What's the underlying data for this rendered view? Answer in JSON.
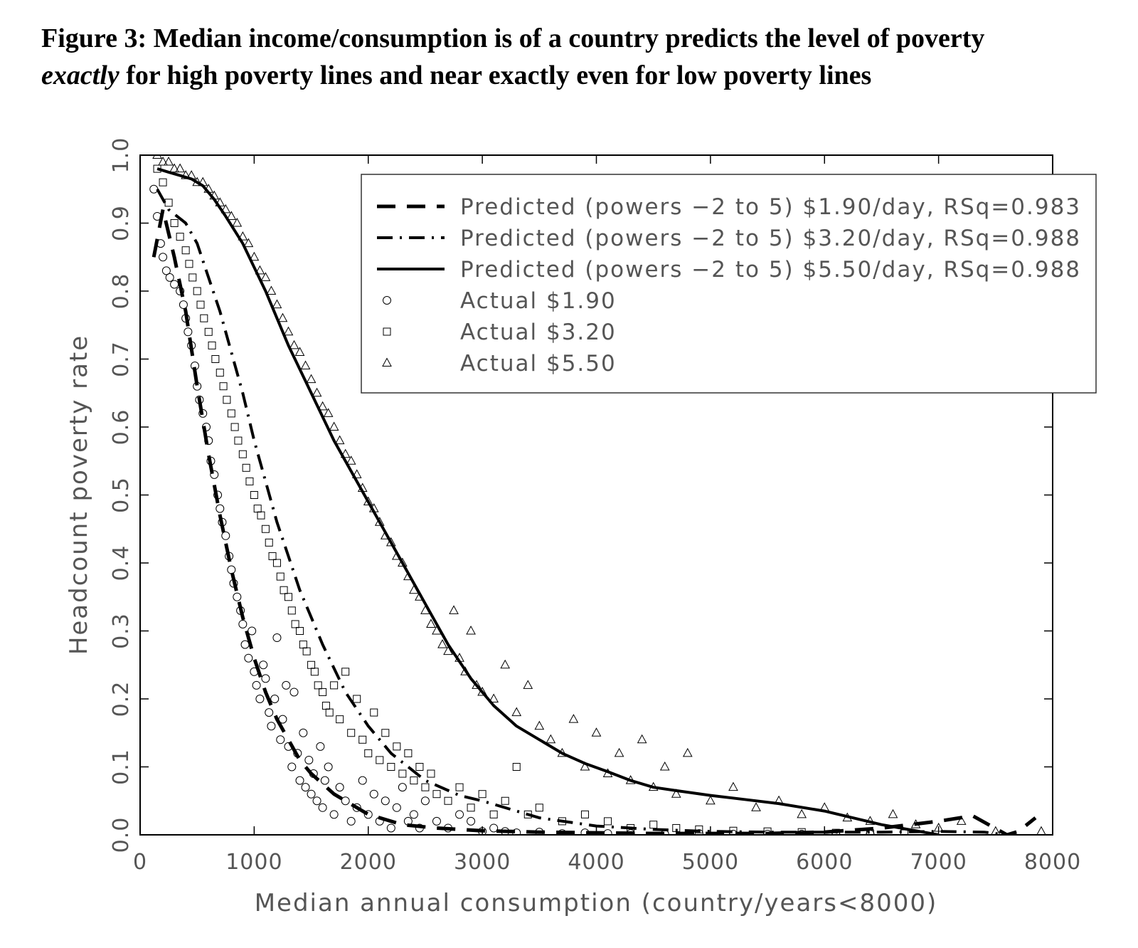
{
  "caption": {
    "line1": "Figure 3:  Median income/consumption is of a country predicts the level of poverty",
    "line2_em": "exactly",
    "line2_rest": " for high poverty lines and near exactly even for low poverty lines"
  },
  "chart_data": {
    "type": "scatter",
    "title": "Figure 3:  Median income/consumption is of a country predicts the level of poverty exactly for high poverty lines and near exactly even for low poverty lines",
    "xlabel": "Median annual consumption (country/years<8000)",
    "ylabel": "Headcount poverty rate",
    "xlim": [
      0,
      8000
    ],
    "ylim": [
      0,
      1
    ],
    "x_ticks": [
      "0",
      "1000",
      "2000",
      "3000",
      "4000",
      "5000",
      "6000",
      "7000",
      "8000"
    ],
    "y_ticks": [
      "0.0",
      "0.1",
      "0.2",
      "0.3",
      "0.4",
      "0.5",
      "0.6",
      "0.7",
      "0.8",
      "0.9",
      "1.0"
    ],
    "legend_position": "top-right",
    "legend": [
      {
        "label": "Predicted (powers −2 to 5) $1.90/day, RSq=0.983",
        "style": "dashed"
      },
      {
        "label": "Predicted (powers −2 to 5) $3.20/day, RSq=0.988",
        "style": "dash-dot"
      },
      {
        "label": "Predicted (powers −2 to 5) $5.50/day, RSq=0.988",
        "style": "solid"
      },
      {
        "label": "Actual $1.90",
        "marker": "circle"
      },
      {
        "label": "Actual $3.20",
        "marker": "square"
      },
      {
        "label": "Actual $5.50",
        "marker": "triangle"
      }
    ],
    "series": [
      {
        "name": "Predicted $1.90/day",
        "style": "dashed",
        "x": [
          120,
          200,
          300,
          400,
          500,
          600,
          700,
          800,
          900,
          1000,
          1100,
          1200,
          1300,
          1400,
          1500,
          1700,
          2000,
          2300,
          2600,
          3000,
          3500,
          4000,
          4500,
          5000,
          5500,
          6000,
          6500,
          7000,
          7300,
          7600,
          7700,
          7850
        ],
        "y": [
          0.85,
          0.92,
          0.85,
          0.77,
          0.66,
          0.56,
          0.47,
          0.39,
          0.32,
          0.26,
          0.21,
          0.17,
          0.14,
          0.11,
          0.09,
          0.06,
          0.03,
          0.015,
          0.01,
          0.006,
          0.004,
          0.003,
          0.002,
          0.002,
          0.002,
          0.004,
          0.01,
          0.02,
          0.028,
          0.0,
          0.005,
          0.025
        ]
      },
      {
        "name": "Predicted $3.20/day",
        "style": "dash-dot",
        "x": [
          150,
          250,
          400,
          500,
          600,
          700,
          800,
          900,
          1000,
          1100,
          1200,
          1300,
          1400,
          1500,
          1600,
          1800,
          2000,
          2200,
          2500,
          2800,
          3000,
          3500,
          4000,
          4500,
          5000,
          5500,
          6000,
          6500,
          7000,
          7400,
          7600
        ],
        "y": [
          0.95,
          0.92,
          0.9,
          0.87,
          0.82,
          0.77,
          0.71,
          0.65,
          0.58,
          0.52,
          0.46,
          0.41,
          0.36,
          0.32,
          0.28,
          0.21,
          0.16,
          0.12,
          0.08,
          0.058,
          0.05,
          0.025,
          0.013,
          0.008,
          0.005,
          0.004,
          0.004,
          0.004,
          0.005,
          0.004,
          0.0
        ]
      },
      {
        "name": "Predicted $5.50/day",
        "style": "solid",
        "x": [
          150,
          250,
          350,
          450,
          550,
          650,
          750,
          900,
          1100,
          1300,
          1500,
          1700,
          1900,
          2100,
          2300,
          2500,
          2700,
          2900,
          3100,
          3300,
          3500,
          3700,
          3900,
          4100,
          4300,
          4500,
          4700,
          5000,
          5300,
          5600,
          6000,
          6500,
          7000
        ],
        "y": [
          0.98,
          0.975,
          0.97,
          0.965,
          0.955,
          0.935,
          0.91,
          0.87,
          0.8,
          0.72,
          0.65,
          0.58,
          0.52,
          0.46,
          0.4,
          0.34,
          0.28,
          0.23,
          0.19,
          0.16,
          0.14,
          0.12,
          0.105,
          0.093,
          0.08,
          0.07,
          0.065,
          0.058,
          0.052,
          0.046,
          0.035,
          0.015,
          0.0
        ]
      },
      {
        "name": "Actual $1.90",
        "marker": "circle",
        "x": [
          120,
          150,
          180,
          200,
          230,
          260,
          300,
          350,
          380,
          400,
          420,
          450,
          480,
          500,
          520,
          550,
          580,
          600,
          620,
          650,
          680,
          700,
          720,
          750,
          780,
          800,
          820,
          850,
          880,
          900,
          920,
          950,
          980,
          1000,
          1020,
          1050,
          1080,
          1100,
          1130,
          1150,
          1180,
          1200,
          1230,
          1250,
          1280,
          1300,
          1330,
          1350,
          1380,
          1400,
          1430,
          1450,
          1480,
          1500,
          1520,
          1550,
          1580,
          1600,
          1620,
          1650,
          1700,
          1750,
          1800,
          1850,
          1900,
          1950,
          2000,
          2050,
          2100,
          2150,
          2200,
          2250,
          2300,
          2350,
          2400,
          2450,
          2500,
          2600,
          2700,
          2800,
          2900,
          3000,
          3100,
          3200,
          3300,
          3500,
          3700,
          3900,
          4100,
          4300,
          4600,
          4900,
          5200,
          5500,
          5800,
          6100,
          6400
        ],
        "y": [
          0.95,
          0.91,
          0.87,
          0.85,
          0.83,
          0.82,
          0.81,
          0.8,
          0.78,
          0.76,
          0.74,
          0.72,
          0.69,
          0.66,
          0.64,
          0.62,
          0.6,
          0.58,
          0.55,
          0.53,
          0.5,
          0.48,
          0.46,
          0.44,
          0.41,
          0.39,
          0.37,
          0.35,
          0.33,
          0.31,
          0.28,
          0.26,
          0.3,
          0.24,
          0.22,
          0.2,
          0.25,
          0.23,
          0.18,
          0.16,
          0.2,
          0.29,
          0.14,
          0.17,
          0.22,
          0.13,
          0.1,
          0.21,
          0.12,
          0.08,
          0.15,
          0.07,
          0.11,
          0.06,
          0.09,
          0.05,
          0.13,
          0.04,
          0.08,
          0.1,
          0.03,
          0.07,
          0.05,
          0.02,
          0.04,
          0.08,
          0.03,
          0.06,
          0.02,
          0.05,
          0.01,
          0.04,
          0.07,
          0.02,
          0.03,
          0.01,
          0.05,
          0.02,
          0.01,
          0.03,
          0.02,
          0.005,
          0.01,
          0.005,
          0.003,
          0.004,
          0.002,
          0.003,
          0.002,
          0.002,
          0.001,
          0.002,
          0.001,
          0.001,
          0.001,
          0.001,
          0.001
        ]
      },
      {
        "name": "Actual $3.20",
        "marker": "square",
        "x": [
          150,
          200,
          250,
          300,
          350,
          400,
          430,
          460,
          500,
          530,
          560,
          600,
          630,
          660,
          700,
          730,
          760,
          800,
          830,
          860,
          900,
          930,
          960,
          1000,
          1030,
          1060,
          1100,
          1130,
          1160,
          1200,
          1230,
          1260,
          1300,
          1330,
          1360,
          1400,
          1430,
          1460,
          1500,
          1530,
          1560,
          1600,
          1630,
          1660,
          1700,
          1750,
          1800,
          1850,
          1900,
          1950,
          2000,
          2050,
          2100,
          2150,
          2200,
          2250,
          2300,
          2350,
          2400,
          2450,
          2500,
          2550,
          2600,
          2700,
          2800,
          2900,
          3000,
          3100,
          3200,
          3300,
          3400,
          3500,
          3700,
          3900,
          4100,
          4300,
          4500,
          4700,
          4900,
          5200,
          5500,
          5800,
          6100,
          6400,
          6700
        ],
        "y": [
          0.98,
          0.96,
          0.93,
          0.9,
          0.88,
          0.86,
          0.84,
          0.82,
          0.8,
          0.78,
          0.76,
          0.74,
          0.72,
          0.7,
          0.68,
          0.66,
          0.64,
          0.62,
          0.6,
          0.58,
          0.56,
          0.54,
          0.52,
          0.5,
          0.48,
          0.47,
          0.45,
          0.43,
          0.41,
          0.4,
          0.38,
          0.36,
          0.35,
          0.33,
          0.31,
          0.3,
          0.28,
          0.27,
          0.25,
          0.24,
          0.22,
          0.21,
          0.19,
          0.18,
          0.22,
          0.17,
          0.24,
          0.15,
          0.2,
          0.14,
          0.12,
          0.18,
          0.11,
          0.15,
          0.1,
          0.13,
          0.09,
          0.12,
          0.08,
          0.1,
          0.07,
          0.09,
          0.06,
          0.05,
          0.07,
          0.04,
          0.06,
          0.03,
          0.05,
          0.1,
          0.03,
          0.04,
          0.02,
          0.03,
          0.02,
          0.01,
          0.015,
          0.01,
          0.008,
          0.006,
          0.005,
          0.004,
          0.003,
          0.002,
          0.002
        ]
      },
      {
        "name": "Actual $5.50",
        "marker": "triangle",
        "x": [
          150,
          200,
          250,
          300,
          350,
          400,
          450,
          500,
          550,
          600,
          650,
          700,
          750,
          800,
          850,
          900,
          950,
          1000,
          1050,
          1100,
          1150,
          1200,
          1250,
          1300,
          1350,
          1400,
          1450,
          1500,
          1550,
          1600,
          1650,
          1700,
          1750,
          1800,
          1850,
          1900,
          1950,
          2000,
          2050,
          2100,
          2150,
          2200,
          2250,
          2300,
          2350,
          2400,
          2450,
          2500,
          2550,
          2600,
          2650,
          2700,
          2750,
          2800,
          2850,
          2900,
          2950,
          3000,
          3100,
          3200,
          3300,
          3400,
          3500,
          3600,
          3700,
          3800,
          3900,
          4000,
          4100,
          4200,
          4300,
          4400,
          4500,
          4600,
          4700,
          4800,
          5000,
          5200,
          5400,
          5600,
          5800,
          6000,
          6200,
          6400,
          6600,
          6800,
          7000,
          7200,
          7500,
          7900
        ],
        "y": [
          1.0,
          0.99,
          0.99,
          0.98,
          0.98,
          0.97,
          0.97,
          0.96,
          0.96,
          0.95,
          0.94,
          0.93,
          0.92,
          0.91,
          0.9,
          0.88,
          0.87,
          0.85,
          0.83,
          0.82,
          0.8,
          0.78,
          0.76,
          0.74,
          0.72,
          0.71,
          0.69,
          0.67,
          0.65,
          0.63,
          0.62,
          0.6,
          0.58,
          0.56,
          0.55,
          0.53,
          0.51,
          0.49,
          0.48,
          0.46,
          0.44,
          0.43,
          0.41,
          0.4,
          0.38,
          0.36,
          0.35,
          0.33,
          0.31,
          0.3,
          0.28,
          0.27,
          0.33,
          0.26,
          0.24,
          0.3,
          0.22,
          0.21,
          0.2,
          0.25,
          0.18,
          0.22,
          0.16,
          0.14,
          0.12,
          0.17,
          0.1,
          0.15,
          0.09,
          0.12,
          0.08,
          0.14,
          0.07,
          0.1,
          0.06,
          0.12,
          0.05,
          0.07,
          0.04,
          0.05,
          0.03,
          0.04,
          0.025,
          0.02,
          0.03,
          0.015,
          0.01,
          0.02,
          0.005,
          0.005
        ]
      }
    ]
  }
}
